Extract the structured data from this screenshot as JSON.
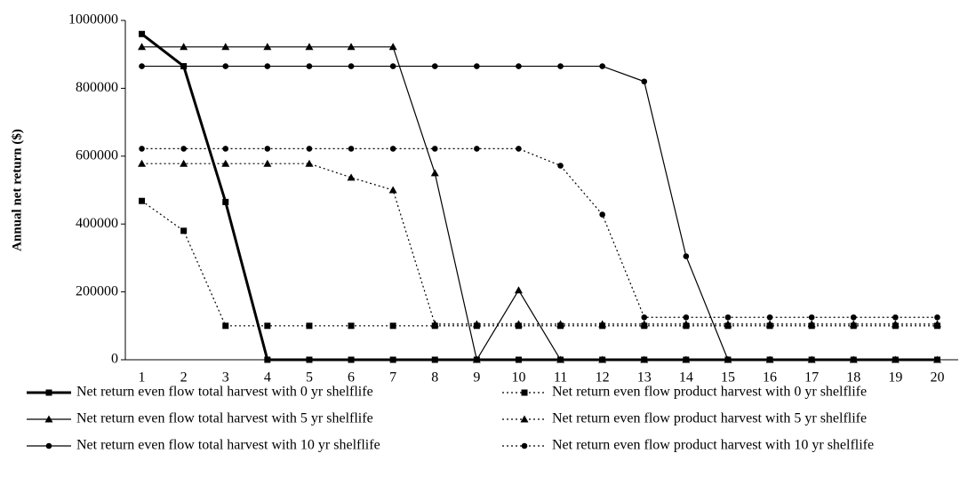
{
  "chart_data": {
    "type": "line",
    "y_label": "Annual net return ($)",
    "categories": [
      "1",
      "2",
      "3",
      "4",
      "5",
      "6",
      "7",
      "8",
      "9",
      "10",
      "11",
      "12",
      "13",
      "14",
      "15",
      "16",
      "17",
      "18",
      "19",
      "20"
    ],
    "ylim": [
      0,
      1000000
    ],
    "yticks": [
      0,
      200000,
      400000,
      600000,
      800000,
      1000000
    ],
    "series": [
      {
        "name": "Net return even flow total harvest with 0 yr shelflife",
        "color": "#000000",
        "line_style": "solid",
        "line_width": 3,
        "marker": "square",
        "values": [
          960000,
          865000,
          465000,
          0,
          0,
          0,
          0,
          0,
          0,
          0,
          0,
          0,
          0,
          0,
          0,
          0,
          0,
          0,
          0,
          0
        ]
      },
      {
        "name": "Net return even flow total harvest with 5 yr shelflife",
        "color": "#000000",
        "line_style": "solid",
        "line_width": 1.2,
        "marker": "triangle",
        "values": [
          922000,
          922000,
          922000,
          922000,
          922000,
          922000,
          922000,
          550000,
          0,
          205000,
          0,
          0,
          0,
          0,
          0,
          0,
          0,
          0,
          0,
          0
        ]
      },
      {
        "name": "Net return even flow total harvest with 10 yr shelflife",
        "color": "#000000",
        "line_style": "solid",
        "line_width": 1.2,
        "marker": "circle",
        "values": [
          865000,
          865000,
          865000,
          865000,
          865000,
          865000,
          865000,
          865000,
          865000,
          865000,
          865000,
          865000,
          820000,
          305000,
          0,
          0,
          0,
          0,
          0,
          0
        ]
      },
      {
        "name": "Net return even flow product harvest with 0 yr shelflife",
        "color": "#000000",
        "line_style": "dotted",
        "line_width": 1.2,
        "marker": "square",
        "values": [
          468000,
          380000,
          100000,
          100000,
          100000,
          100000,
          100000,
          100000,
          100000,
          100000,
          100000,
          100000,
          100000,
          100000,
          100000,
          100000,
          100000,
          100000,
          100000,
          100000
        ]
      },
      {
        "name": "Net return even flow product harvest with 5 yr shelflife",
        "color": "#000000",
        "line_style": "dotted",
        "line_width": 1.2,
        "marker": "triangle",
        "values": [
          578000,
          578000,
          578000,
          578000,
          578000,
          537000,
          500000,
          105000,
          105000,
          105000,
          105000,
          105000,
          105000,
          105000,
          105000,
          105000,
          105000,
          105000,
          105000,
          105000
        ]
      },
      {
        "name": "Net return even flow product harvest with 10 yr shelflife",
        "color": "#000000",
        "line_style": "dotted",
        "line_width": 1.2,
        "marker": "circle",
        "values": [
          622000,
          622000,
          622000,
          622000,
          622000,
          622000,
          622000,
          622000,
          622000,
          622000,
          572000,
          428000,
          125000,
          125000,
          125000,
          125000,
          125000,
          125000,
          125000,
          125000
        ]
      }
    ]
  }
}
